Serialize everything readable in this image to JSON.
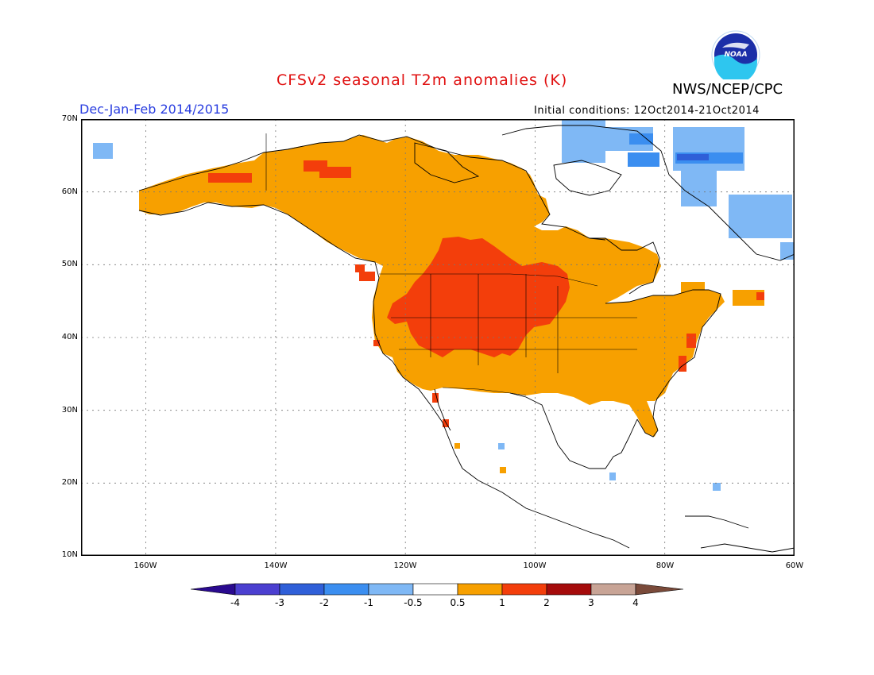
{
  "header": {
    "title": "CFSv2 seasonal T2m anomalies (K)",
    "agency": "NWS/NCEP/CPC",
    "season": "Dec-Jan-Feb 2014/2015",
    "initial_conditions": "Initial conditions: 12Oct2014-21Oct2014",
    "logo_text": "NOAA"
  },
  "axes": {
    "lat_labels": [
      "70N",
      "60N",
      "50N",
      "40N",
      "30N",
      "20N",
      "10N"
    ],
    "lon_labels": [
      "160W",
      "140W",
      "120W",
      "100W",
      "80W",
      "60W"
    ]
  },
  "colorbar": {
    "labels": [
      "-4",
      "-3",
      "-2",
      "-1",
      "-0.5",
      "0.5",
      "1",
      "2",
      "3",
      "4"
    ],
    "colors": {
      "lt_minus4": "#2a0a8f",
      "m4_m3": "#4b3fd0",
      "m3_m2": "#2f5fd8",
      "m2_m1": "#3b8ef0",
      "m1_m05": "#7fb8f5",
      "neutral": "#ffffff",
      "p05_p1": "#f7a000",
      "p1_p2": "#f33e0b",
      "p2_p3": "#a50b0b",
      "p3_p4": "#c8a496",
      "gt_4": "#7a4a3a"
    }
  },
  "map": {
    "extent": "170W-60W, 10N-70N",
    "regions": [
      {
        "name": "western Canada / Alaska / western & central US",
        "category": "0.5 to 1"
      },
      {
        "name": "northern Rockies / northern Plains / Great Basin",
        "category": "1 to 2"
      },
      {
        "name": "northeastern Canada / Greenland",
        "category": "-1 to -0.5"
      }
    ]
  }
}
